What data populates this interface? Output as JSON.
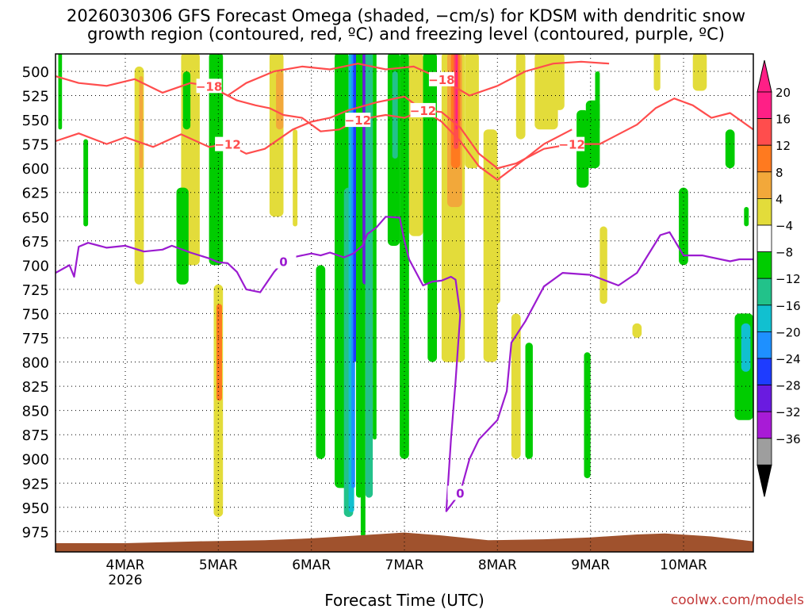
{
  "chart_data": {
    "type": "heatmap",
    "title_line1": "2026030306 GFS Forecast Omega (shaded, −cm/s) for KDSM with dendritic snow",
    "title_line2": "growth region (contoured, red, ºC) and freezing level (contoured, purple, ºC)",
    "xlabel": "Forecast Time (UTC)",
    "watermark": "coolwx.com/models",
    "x_ticks": [
      "4MAR",
      "5MAR",
      "6MAR",
      "7MAR",
      "8MAR",
      "9MAR",
      "10MAR"
    ],
    "x_tick_sublabel": "2026",
    "x_range_days": [
      3.25,
      10.75
    ],
    "y_ticks": [
      500,
      525,
      550,
      575,
      600,
      625,
      650,
      675,
      700,
      725,
      750,
      775,
      800,
      825,
      850,
      875,
      900,
      925,
      950,
      975
    ],
    "y_range_hpa": [
      482,
      996
    ],
    "grid": "dotted",
    "colorbar": {
      "levels": [
        "20",
        "16",
        "12",
        "8",
        "4",
        "−4",
        "−8",
        "−12",
        "−16",
        "−20",
        "−24",
        "−28",
        "−32",
        "−36"
      ],
      "colors": [
        "#ff1f86",
        "#ff4d4d",
        "#ff7a1f",
        "#f2a83a",
        "#e3dc3a",
        "#ffffff",
        "#00cc00",
        "#22c28a",
        "#11c0d0",
        "#1e90ff",
        "#1e3cff",
        "#6a1be0",
        "#a81bd6",
        "#9e9e9e"
      ]
    },
    "series": [
      {
        "name": "freezing level",
        "contour_label": "0",
        "color": "#9b1bd0",
        "x": [
          3.25,
          3.4,
          3.45,
          3.5,
          3.6,
          3.8,
          4.0,
          4.2,
          4.4,
          4.5,
          4.7,
          4.9,
          5.0,
          5.1,
          5.2,
          5.3,
          5.45,
          5.6,
          5.7,
          5.8,
          5.9,
          6.0,
          6.1,
          6.2,
          6.35,
          6.45,
          6.55,
          6.6,
          6.7,
          6.8,
          6.95,
          7.0,
          7.05,
          7.2,
          7.3,
          7.4,
          7.5,
          7.55,
          7.6,
          7.55,
          7.5,
          7.45,
          7.6,
          7.7,
          7.8,
          8.0,
          8.1,
          8.15,
          8.3,
          8.5,
          8.7,
          9.0,
          9.3,
          9.5,
          9.75,
          9.85,
          10.0,
          10.2,
          10.5,
          10.6,
          10.75
        ],
        "y": [
          708,
          700,
          712,
          681,
          677,
          682,
          680,
          686,
          684,
          680,
          687,
          693,
          697,
          698,
          707,
          725,
          728,
          707,
          696,
          692,
          690,
          688,
          690,
          687,
          692,
          688,
          680,
          668,
          661,
          650,
          651,
          675,
          694,
          721,
          717,
          716,
          712,
          715,
          751,
          820,
          880,
          954,
          935,
          900,
          880,
          860,
          830,
          780,
          758,
          722,
          708,
          710,
          721,
          708,
          669,
          666,
          690,
          690,
          696,
          694,
          694
        ]
      },
      {
        "name": "DGZ −12°C (upper)",
        "contour_label": "−12",
        "color": "#ff4d4d",
        "x": [
          5.0,
          5.2,
          5.4,
          5.55,
          5.7,
          5.9,
          6.1,
          6.3,
          6.5,
          6.8,
          7.0,
          7.2,
          7.4,
          7.6,
          7.8,
          8.0,
          8.2,
          8.5,
          8.8,
          9.1,
          9.5,
          9.7,
          9.9,
          10.1,
          10.3,
          10.5,
          10.75
        ],
        "y": [
          520,
          530,
          535,
          538,
          545,
          548,
          562,
          560,
          550,
          545,
          548,
          540,
          542,
          558,
          585,
          600,
          595,
          580,
          575,
          575,
          555,
          538,
          528,
          535,
          548,
          543,
          560
        ]
      },
      {
        "name": "DGZ −12°C (lower)",
        "contour_label": "−12",
        "color": "#ff4d4d",
        "x": [
          3.25,
          3.5,
          3.8,
          4.0,
          4.3,
          4.6,
          4.9,
          5.1,
          5.3,
          5.5,
          5.8,
          6.0,
          6.2,
          6.4,
          6.7,
          7.0,
          7.2,
          7.4,
          7.6,
          7.8,
          8.0,
          8.3,
          8.5,
          8.8
        ],
        "y": [
          572,
          564,
          575,
          568,
          578,
          565,
          578,
          575,
          585,
          580,
          560,
          552,
          548,
          540,
          532,
          526,
          540,
          552,
          572,
          598,
          612,
          590,
          575,
          560
        ]
      },
      {
        "name": "DGZ −18°C",
        "contour_label": "−18",
        "color": "#ff4d4d",
        "x": [
          3.25,
          3.5,
          3.8,
          4.1,
          4.4,
          4.7,
          4.9,
          5.1,
          5.3,
          5.6,
          5.9,
          6.2,
          6.5,
          6.8,
          7.1,
          7.4,
          7.7,
          8.0,
          8.3,
          8.6,
          8.9,
          9.2
        ],
        "y": [
          505,
          512,
          515,
          508,
          522,
          512,
          515,
          525,
          512,
          500,
          495,
          498,
          492,
          498,
          495,
          508,
          525,
          515,
          500,
          492,
          490,
          492
        ]
      }
    ],
    "surface_fill_color": "#a0522d"
  }
}
